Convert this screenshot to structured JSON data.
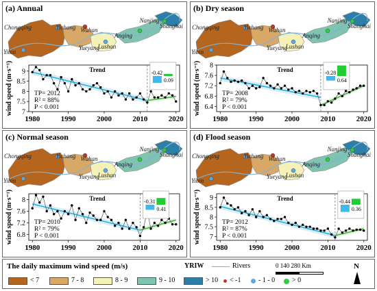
{
  "legend": {
    "title": "The daily maximum wind speed (m/s)",
    "yriw": "YRIW",
    "rivers": "Rivers",
    "scale_label": "0    140  280 Km",
    "north": "N",
    "classes": [
      {
        "label": "< 7",
        "color": "#b5651d"
      },
      {
        "label": "7 - 8",
        "color": "#d9a866"
      },
      {
        "label": "8 - 9",
        "color": "#f5f2b8"
      },
      {
        "label": "9 - 10",
        "color": "#7fc4b0"
      },
      {
        "label": "> 10",
        "color": "#2c7fa8"
      }
    ],
    "trend_classes": [
      {
        "label": "< -1",
        "color": "#c0392b"
      },
      {
        "label": "- 1 - 0",
        "color": "#5aa9e6"
      },
      {
        "label": "> 0",
        "color": "#2ecc40"
      }
    ]
  },
  "panels": [
    {
      "title": "(a) Annual",
      "cities": [
        "Chongqing",
        "Yichang",
        "Wuhan",
        "Anqing",
        "Nanjing",
        "Shanghai",
        "Yibin",
        "Yueyang",
        "Lushan"
      ],
      "trend_label": "Trend",
      "stats": [
        "TP= 2012",
        "R² = 88%",
        "P  < 0.001"
      ],
      "slope_neg": "-0.42",
      "slope_pos": "0.09"
    },
    {
      "title": "(b) Dry season",
      "cities": [
        "Chongqing",
        "Yichang",
        "Wuhan",
        "Anqing",
        "Nanjing",
        "Shanghai",
        "Yibin",
        "Yueyang",
        "Lushan"
      ],
      "trend_label": "Trend",
      "stats": [
        "TP= 2008",
        "R² = 79%",
        "P  < 0.001"
      ],
      "slope_neg": "-0.28",
      "slope_pos": "0.64"
    },
    {
      "title": "(c) Normal season",
      "cities": [
        "Chongqing",
        "Yichang",
        "Wuhan",
        "Anqing",
        "Nanjing",
        "Shanghai",
        "Yibin",
        "Yueyang",
        "Lushan"
      ],
      "trend_label": "Trend",
      "stats": [
        "TP= 2010",
        "R² = 79%",
        "P  < 0.001"
      ],
      "slope_neg": "-0.31",
      "slope_pos": "0.41"
    },
    {
      "title": "(d) Flood season",
      "cities": [
        "Chongqing",
        "Yichang",
        "Wuhan",
        "Anqing",
        "Nanjing",
        "Shanghai",
        "Yibin",
        "Yueyang",
        "Lushan"
      ],
      "trend_label": "Trend",
      "stats": [
        "TP= 2012",
        "R² = 87%",
        "P  < 0.001"
      ],
      "slope_neg": "-0.44",
      "slope_pos": "0.36"
    }
  ],
  "chart_data": [
    {
      "type": "line",
      "title": "(a) Annual",
      "ylabel": "wind speed (m·s⁻¹)",
      "xlim": [
        1979,
        2021
      ],
      "ylim": [
        7,
        9.3
      ],
      "xticks": [
        1980,
        1990,
        2000,
        2010,
        2020
      ],
      "yticks": [
        7,
        7.5,
        8,
        8.5,
        9
      ],
      "turning_point": 2012,
      "x": [
        1980,
        1981,
        1982,
        1983,
        1984,
        1985,
        1986,
        1987,
        1988,
        1989,
        1990,
        1991,
        1992,
        1993,
        1994,
        1995,
        1996,
        1997,
        1998,
        1999,
        2000,
        2001,
        2002,
        2003,
        2004,
        2005,
        2006,
        2007,
        2008,
        2009,
        2010,
        2011,
        2012,
        2013,
        2014,
        2015,
        2016,
        2017,
        2018,
        2019,
        2020
      ],
      "series": [
        {
          "values": [
            8.95,
            9.2,
            9.05,
            8.6,
            8.8,
            8.8,
            8.4,
            8.1,
            8.7,
            8.4,
            8.0,
            8.6,
            8.3,
            8.4,
            8.1,
            8.0,
            8.1,
            8.3,
            8.4,
            8.2,
            7.9,
            8.0,
            7.7,
            8.0,
            7.8,
            7.9,
            7.6,
            7.9,
            7.6,
            7.7,
            7.9,
            7.6,
            7.45,
            8.0,
            7.7,
            7.7,
            7.8,
            7.7,
            7.9,
            7.8,
            7.5
          ]
        }
      ],
      "trend_segments": [
        {
          "x": [
            1980,
            2012
          ],
          "y": [
            8.95,
            7.55
          ]
        },
        {
          "x": [
            2012,
            2020
          ],
          "y": [
            7.55,
            7.75
          ]
        }
      ]
    },
    {
      "type": "line",
      "title": "(b) Dry season",
      "ylabel": "wind speed (m·s⁻¹)",
      "xlim": [
        1979,
        2021
      ],
      "ylim": [
        6.2,
        8.0
      ],
      "xticks": [
        1980,
        1990,
        2000,
        2010,
        2020
      ],
      "yticks": [
        6.4,
        6.8,
        7.2,
        7.6,
        8.0
      ],
      "turning_point": 2008,
      "x": [
        1980,
        1981,
        1982,
        1983,
        1984,
        1985,
        1986,
        1987,
        1988,
        1989,
        1990,
        1991,
        1992,
        1993,
        1994,
        1995,
        1996,
        1997,
        1998,
        1999,
        2000,
        2001,
        2002,
        2003,
        2004,
        2005,
        2006,
        2007,
        2008,
        2009,
        2010,
        2011,
        2012,
        2013,
        2014,
        2015,
        2016,
        2017,
        2018,
        2019,
        2020
      ],
      "series": [
        {
          "values": [
            7.3,
            7.75,
            7.5,
            7.35,
            7.4,
            7.35,
            7.4,
            7.3,
            7.1,
            7.2,
            7.1,
            7.15,
            7.5,
            7.3,
            7.2,
            7.1,
            7.25,
            7.1,
            7.2,
            7.05,
            7.1,
            6.95,
            7.0,
            6.9,
            7.0,
            6.95,
            7.0,
            6.9,
            6.45,
            6.45,
            6.6,
            6.55,
            6.7,
            6.9,
            6.8,
            7.0,
            6.95,
            7.05,
            7.1,
            7.2,
            7.2
          ]
        }
      ],
      "trend_segments": [
        {
          "x": [
            1980,
            2008
          ],
          "y": [
            7.5,
            6.75
          ]
        },
        {
          "x": [
            2008,
            2020
          ],
          "y": [
            6.45,
            7.2
          ]
        }
      ]
    },
    {
      "type": "line",
      "title": "(c) Normal season",
      "ylabel": "wind speed (m·s⁻¹)",
      "xlim": [
        1979,
        2021
      ],
      "ylim": [
        6.6,
        8.2
      ],
      "xticks": [
        1980,
        1990,
        2000,
        2010,
        2020
      ],
      "yticks": [
        6.8,
        7.2,
        7.6,
        8.0
      ],
      "turning_point": 2010,
      "x": [
        1980,
        1981,
        1982,
        1983,
        1984,
        1985,
        1986,
        1987,
        1988,
        1989,
        1990,
        1991,
        1992,
        1993,
        1994,
        1995,
        1996,
        1997,
        1998,
        1999,
        2000,
        2001,
        2002,
        2003,
        2004,
        2005,
        2006,
        2007,
        2008,
        2009,
        2010,
        2011,
        2012,
        2013,
        2014,
        2015,
        2016,
        2017,
        2018,
        2019,
        2020
      ],
      "series": [
        {
          "values": [
            7.7,
            8.15,
            7.9,
            8.1,
            7.6,
            7.8,
            7.5,
            7.6,
            7.35,
            7.6,
            7.5,
            7.8,
            7.3,
            7.7,
            7.5,
            7.2,
            7.55,
            7.45,
            7.3,
            7.3,
            7.6,
            7.4,
            7.3,
            7.1,
            7.2,
            7.0,
            7.3,
            7.0,
            7.2,
            7.05,
            6.75,
            7.05,
            7.6,
            7.0,
            7.2,
            7.1,
            7.3,
            7.2,
            7.35,
            7.15,
            7.15
          ]
        }
      ],
      "trend_segments": [
        {
          "x": [
            1980,
            2010
          ],
          "y": [
            7.85,
            6.95
          ]
        },
        {
          "x": [
            2010,
            2020
          ],
          "y": [
            6.95,
            7.3
          ]
        }
      ]
    },
    {
      "type": "line",
      "title": "(d) Flood season",
      "ylabel": "wind speed (m·s⁻¹)",
      "xlim": [
        1979,
        2021
      ],
      "ylim": [
        6.8,
        9.2
      ],
      "xticks": [
        1980,
        1990,
        2000,
        2010,
        2020
      ],
      "yticks": [
        7,
        7.5,
        8,
        8.5,
        9
      ],
      "turning_point": 2012,
      "x": [
        1980,
        1981,
        1982,
        1983,
        1984,
        1985,
        1986,
        1987,
        1988,
        1989,
        1990,
        1991,
        1992,
        1993,
        1994,
        1995,
        1996,
        1997,
        1998,
        1999,
        2000,
        2001,
        2002,
        2003,
        2004,
        2005,
        2006,
        2007,
        2008,
        2009,
        2010,
        2011,
        2012,
        2013,
        2014,
        2015,
        2016,
        2017,
        2018,
        2019,
        2020
      ],
      "series": [
        {
          "values": [
            8.5,
            9.0,
            8.7,
            8.6,
            8.4,
            8.5,
            8.2,
            8.3,
            8.1,
            8.4,
            8.0,
            8.3,
            8.0,
            8.1,
            7.9,
            7.8,
            7.9,
            7.9,
            8.0,
            7.7,
            7.6,
            7.7,
            7.5,
            7.6,
            7.5,
            7.5,
            7.4,
            7.4,
            7.3,
            7.3,
            7.4,
            7.1,
            6.95,
            7.4,
            7.2,
            7.3,
            7.4,
            7.3,
            7.35,
            7.35,
            7.3
          ]
        }
      ],
      "trend_segments": [
        {
          "x": [
            1980,
            2012
          ],
          "y": [
            8.55,
            7.05
          ]
        },
        {
          "x": [
            2012,
            2020
          ],
          "y": [
            7.05,
            7.4
          ]
        }
      ]
    }
  ]
}
